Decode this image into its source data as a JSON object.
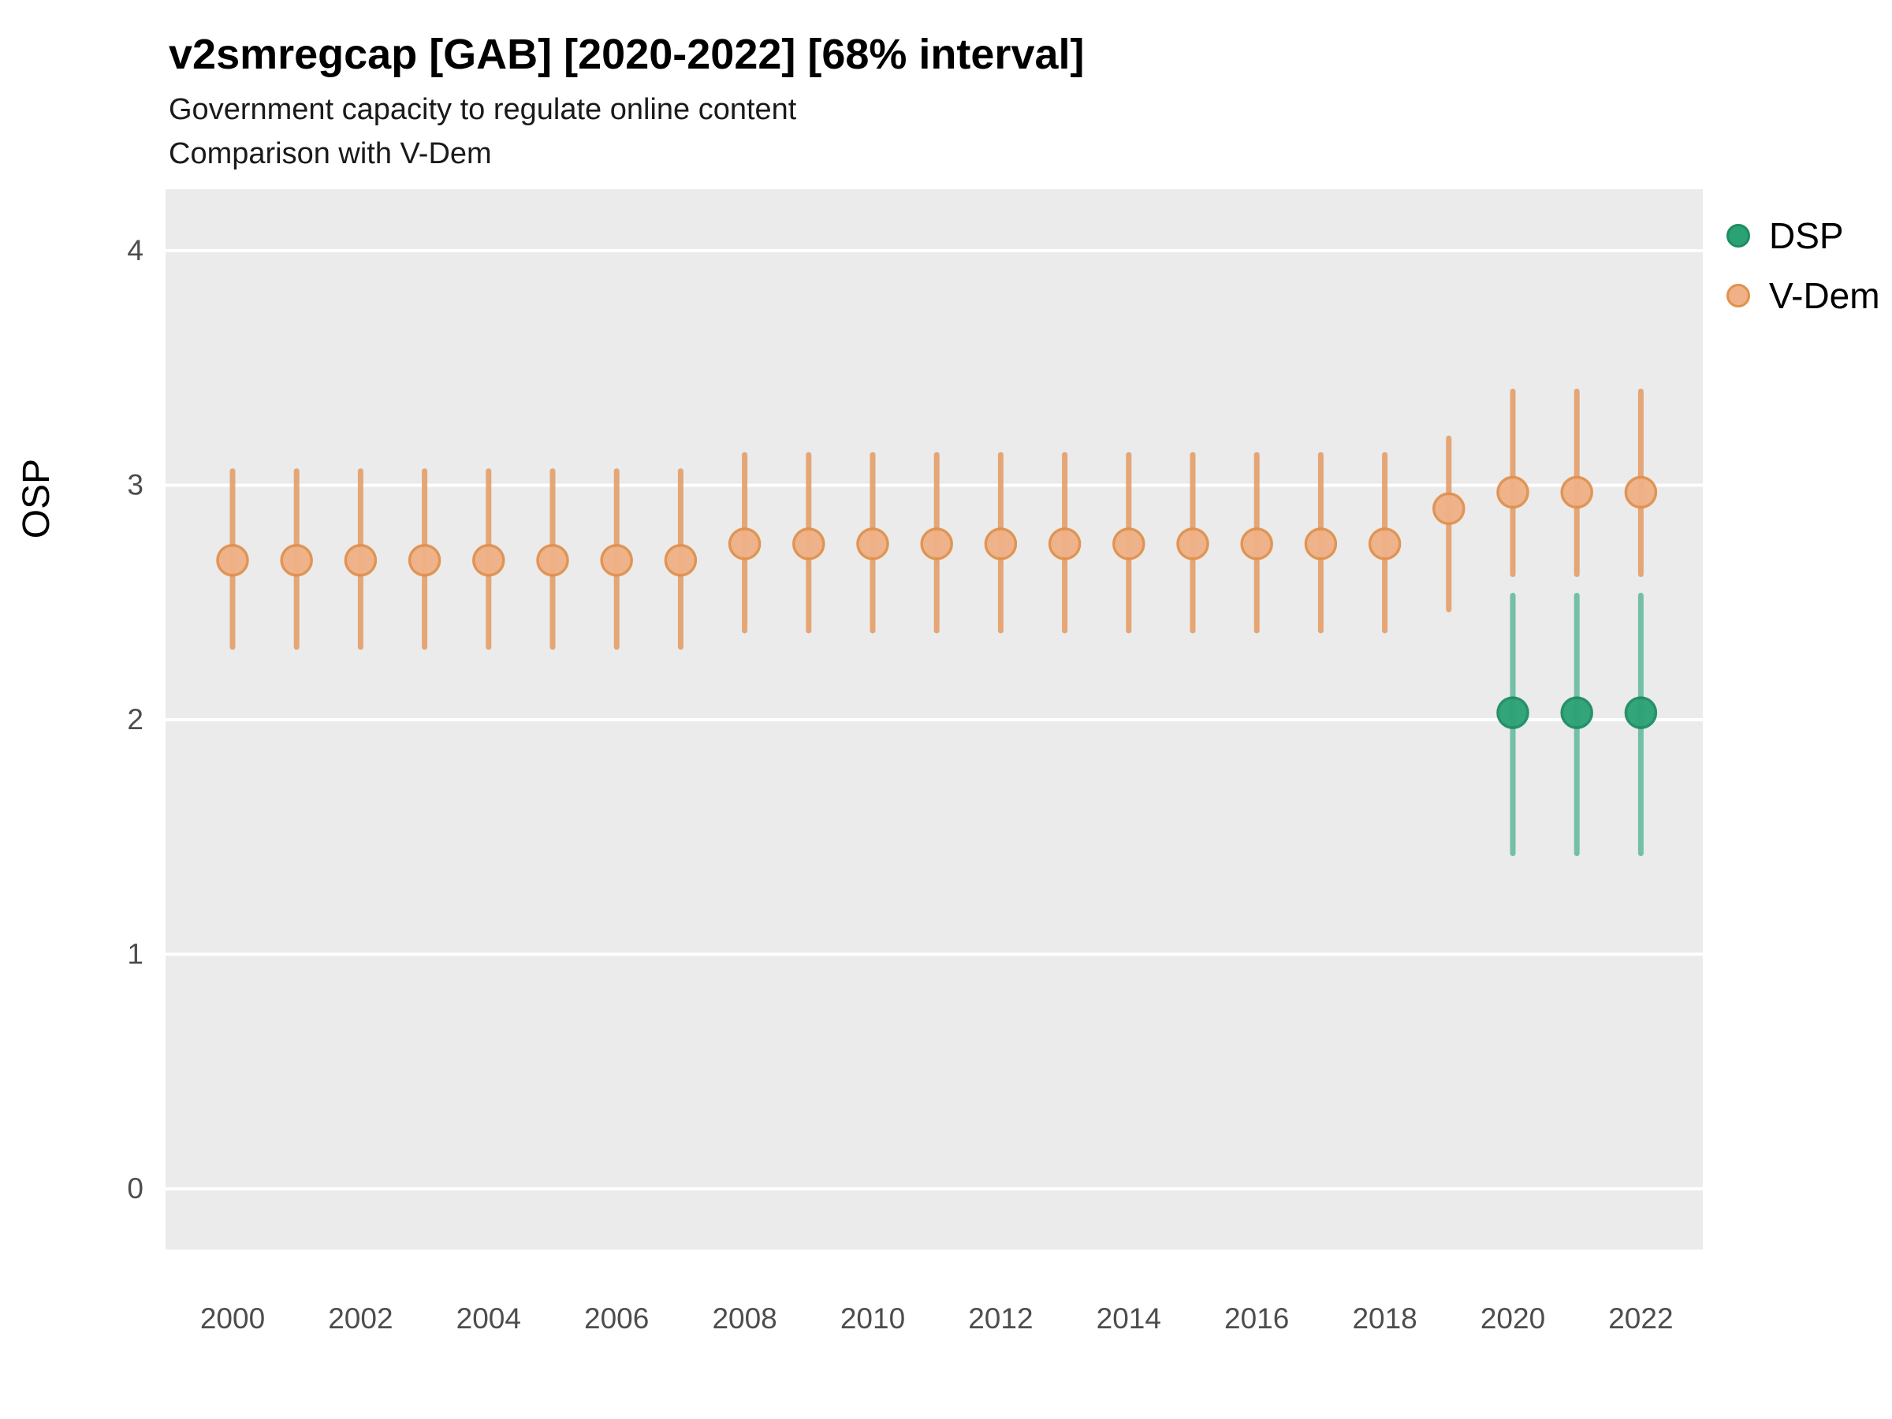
{
  "chart_data": {
    "type": "pointrange",
    "title": "v2smregcap [GAB] [2020-2022] [68% interval]",
    "subtitle_line1": "Government capacity to regulate online content",
    "subtitle_line2": "Comparison with V-Dem",
    "xlabel": "",
    "ylabel": "OSP",
    "ylim": [
      -0.25,
      4.25
    ],
    "y_ticks": [
      0,
      1,
      2,
      3,
      4
    ],
    "x_ticks": [
      2000,
      2002,
      2004,
      2006,
      2008,
      2010,
      2012,
      2014,
      2016,
      2018,
      2020,
      2022
    ],
    "grid": "major-horizontal-white-on-gray",
    "panel_background": "#ebebeb",
    "legend_position": "right-top",
    "legend": [
      {
        "name": "DSP",
        "fill": "#2aa274",
        "stroke": "#1f8c62"
      },
      {
        "name": "V-Dem",
        "fill": "#efb185",
        "stroke": "#e0914f"
      }
    ],
    "series": [
      {
        "name": "V-Dem",
        "fill": "#efb185",
        "stroke": "#e0914f",
        "line_color": "#e39a62",
        "points": [
          {
            "x": 2000,
            "y": 2.68,
            "lo": 2.31,
            "hi": 3.06
          },
          {
            "x": 2001,
            "y": 2.68,
            "lo": 2.31,
            "hi": 3.06
          },
          {
            "x": 2002,
            "y": 2.68,
            "lo": 2.31,
            "hi": 3.06
          },
          {
            "x": 2003,
            "y": 2.68,
            "lo": 2.31,
            "hi": 3.06
          },
          {
            "x": 2004,
            "y": 2.68,
            "lo": 2.31,
            "hi": 3.06
          },
          {
            "x": 2005,
            "y": 2.68,
            "lo": 2.31,
            "hi": 3.06
          },
          {
            "x": 2006,
            "y": 2.68,
            "lo": 2.31,
            "hi": 3.06
          },
          {
            "x": 2007,
            "y": 2.68,
            "lo": 2.31,
            "hi": 3.06
          },
          {
            "x": 2008,
            "y": 2.75,
            "lo": 2.38,
            "hi": 3.13
          },
          {
            "x": 2009,
            "y": 2.75,
            "lo": 2.38,
            "hi": 3.13
          },
          {
            "x": 2010,
            "y": 2.75,
            "lo": 2.38,
            "hi": 3.13
          },
          {
            "x": 2011,
            "y": 2.75,
            "lo": 2.38,
            "hi": 3.13
          },
          {
            "x": 2012,
            "y": 2.75,
            "lo": 2.38,
            "hi": 3.13
          },
          {
            "x": 2013,
            "y": 2.75,
            "lo": 2.38,
            "hi": 3.13
          },
          {
            "x": 2014,
            "y": 2.75,
            "lo": 2.38,
            "hi": 3.13
          },
          {
            "x": 2015,
            "y": 2.75,
            "lo": 2.38,
            "hi": 3.13
          },
          {
            "x": 2016,
            "y": 2.75,
            "lo": 2.38,
            "hi": 3.13
          },
          {
            "x": 2017,
            "y": 2.75,
            "lo": 2.38,
            "hi": 3.13
          },
          {
            "x": 2018,
            "y": 2.75,
            "lo": 2.38,
            "hi": 3.13
          },
          {
            "x": 2019,
            "y": 2.9,
            "lo": 2.47,
            "hi": 3.2
          },
          {
            "x": 2020,
            "y": 2.97,
            "lo": 2.62,
            "hi": 3.4
          },
          {
            "x": 2021,
            "y": 2.97,
            "lo": 2.62,
            "hi": 3.4
          },
          {
            "x": 2022,
            "y": 2.97,
            "lo": 2.62,
            "hi": 3.4
          }
        ]
      },
      {
        "name": "DSP",
        "fill": "#2aa274",
        "stroke": "#1f8c62",
        "line_color": "#5fb99a",
        "points": [
          {
            "x": 2020,
            "y": 2.03,
            "lo": 1.43,
            "hi": 2.53
          },
          {
            "x": 2021,
            "y": 2.03,
            "lo": 1.43,
            "hi": 2.53
          },
          {
            "x": 2022,
            "y": 2.03,
            "lo": 1.43,
            "hi": 2.53
          }
        ]
      }
    ]
  }
}
